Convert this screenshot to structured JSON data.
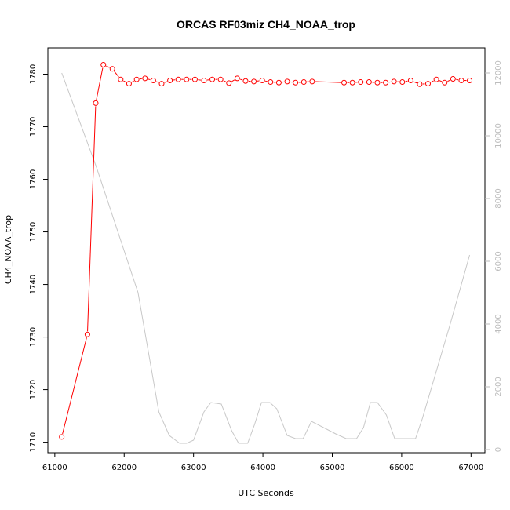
{
  "chart_data": {
    "type": "line",
    "title": "ORCAS RF03miz CH4_NOAA_trop",
    "xlabel": "UTC Seconds",
    "ylabel": "CH4_NOAA_trop",
    "xlim": [
      60900,
      67200
    ],
    "ylim": [
      1708,
      1785
    ],
    "y2lim": [
      -100,
      12800
    ],
    "x_ticks": [
      61000,
      62000,
      63000,
      64000,
      65000,
      66000,
      67000
    ],
    "y_ticks": [
      1710,
      1720,
      1730,
      1740,
      1750,
      1760,
      1770,
      1780
    ],
    "y2_ticks": [
      0,
      2000,
      4000,
      6000,
      8000,
      10000,
      12000
    ],
    "grid": false,
    "colors": {
      "ch4": "#ff0000",
      "altitude": "#c8c8c8",
      "axis": "#000000",
      "axis_right": "#bdbdbd"
    },
    "series": [
      {
        "axis": "left",
        "style": "line+markers",
        "color": "#ff0000",
        "points": [
          [
            61100,
            1711.0
          ],
          [
            61470,
            1730.5
          ],
          [
            61590,
            1774.5
          ],
          [
            61700,
            1781.8
          ],
          [
            61830,
            1781.0
          ],
          [
            61950,
            1779.0
          ],
          [
            62070,
            1778.2
          ],
          [
            62180,
            1779.0
          ],
          [
            62300,
            1779.2
          ],
          [
            62420,
            1778.8
          ],
          [
            62540,
            1778.2
          ],
          [
            62660,
            1778.8
          ],
          [
            62780,
            1779.0
          ],
          [
            62900,
            1779.0
          ],
          [
            63020,
            1779.0
          ],
          [
            63150,
            1778.8
          ],
          [
            63270,
            1779.0
          ],
          [
            63390,
            1779.0
          ],
          [
            63510,
            1778.3
          ],
          [
            63630,
            1779.2
          ],
          [
            63750,
            1778.7
          ],
          [
            63870,
            1778.6
          ],
          [
            63990,
            1778.8
          ],
          [
            64110,
            1778.5
          ],
          [
            64230,
            1778.4
          ],
          [
            64350,
            1778.6
          ],
          [
            64470,
            1778.4
          ],
          [
            64590,
            1778.5
          ],
          [
            64710,
            1778.6
          ],
          [
            65170,
            1778.4
          ],
          [
            65290,
            1778.4
          ],
          [
            65410,
            1778.5
          ],
          [
            65530,
            1778.5
          ],
          [
            65650,
            1778.4
          ],
          [
            65770,
            1778.4
          ],
          [
            65890,
            1778.6
          ],
          [
            66010,
            1778.5
          ],
          [
            66130,
            1778.8
          ],
          [
            66260,
            1778.1
          ],
          [
            66380,
            1778.2
          ],
          [
            66500,
            1779.0
          ],
          [
            66620,
            1778.4
          ],
          [
            66740,
            1779.1
          ],
          [
            66860,
            1778.8
          ],
          [
            66980,
            1778.8
          ]
        ]
      },
      {
        "axis": "right",
        "style": "line",
        "color": "#c8c8c8",
        "points": [
          [
            61100,
            12000
          ],
          [
            61600,
            9000
          ],
          [
            62200,
            5000
          ],
          [
            62500,
            1200
          ],
          [
            62650,
            450
          ],
          [
            62800,
            200
          ],
          [
            62900,
            200
          ],
          [
            63000,
            300
          ],
          [
            63150,
            1200
          ],
          [
            63250,
            1500
          ],
          [
            63400,
            1450
          ],
          [
            63550,
            600
          ],
          [
            63650,
            200
          ],
          [
            63780,
            200
          ],
          [
            63880,
            800
          ],
          [
            63980,
            1500
          ],
          [
            64100,
            1500
          ],
          [
            64200,
            1300
          ],
          [
            64350,
            450
          ],
          [
            64470,
            350
          ],
          [
            64580,
            350
          ],
          [
            64700,
            900
          ],
          [
            65050,
            500
          ],
          [
            65200,
            350
          ],
          [
            65350,
            350
          ],
          [
            65450,
            700
          ],
          [
            65550,
            1500
          ],
          [
            65650,
            1500
          ],
          [
            65780,
            1100
          ],
          [
            65900,
            350
          ],
          [
            66050,
            350
          ],
          [
            66200,
            350
          ],
          [
            66300,
            1000
          ],
          [
            66700,
            4000
          ],
          [
            66980,
            6200
          ]
        ]
      }
    ]
  }
}
